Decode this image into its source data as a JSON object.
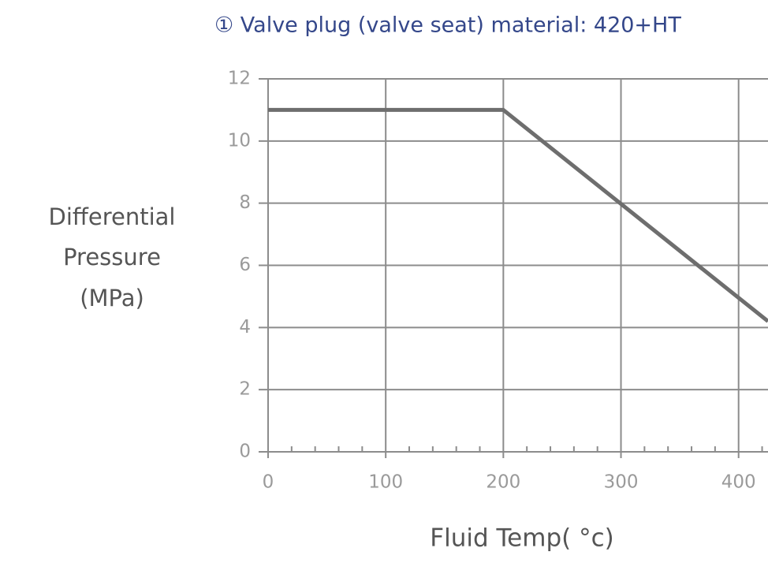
{
  "chart_data": {
    "type": "line",
    "title": "① Valve plug (valve seat) material: 420+HT",
    "ylabel": [
      "Differential",
      "Pressure",
      "(MPa)"
    ],
    "xlabel": "Fluid Temp( °c)",
    "x": [
      0,
      200,
      425
    ],
    "series": [
      {
        "color": "#6e6e6e",
        "values": [
          11,
          11,
          4.2
        ]
      }
    ],
    "xlim": [
      0,
      425
    ],
    "ylim": [
      0,
      12
    ],
    "xticks": [
      0,
      100,
      200,
      300,
      400
    ],
    "xminorticks": [
      20,
      40,
      60,
      80,
      120,
      140,
      160,
      180,
      220,
      240,
      260,
      280,
      320,
      340,
      360,
      380,
      420
    ],
    "yticks": [
      0,
      2,
      4,
      6,
      8,
      10,
      12
    ],
    "grid": true
  }
}
